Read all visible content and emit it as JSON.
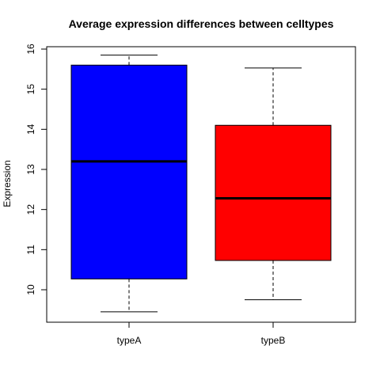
{
  "chart_data": {
    "type": "boxplot",
    "title": "Average expression differences between celltypes",
    "xlabel": "",
    "ylabel": "Expression",
    "ylim": [
      9.3,
      16.1
    ],
    "yticks": [
      10,
      11,
      12,
      13,
      14,
      15,
      16
    ],
    "grid": false,
    "legend": "none",
    "categories": [
      "typeA",
      "typeB"
    ],
    "series": [
      {
        "category": "typeA",
        "color": "#0000ff",
        "whisker_low": 9.45,
        "q1": 10.27,
        "median": 13.2,
        "q3": 15.6,
        "whisker_high": 15.85
      },
      {
        "category": "typeB",
        "color": "#ff0000",
        "whisker_low": 9.75,
        "q1": 10.73,
        "median": 12.28,
        "q3": 14.1,
        "whisker_high": 15.53
      }
    ]
  }
}
